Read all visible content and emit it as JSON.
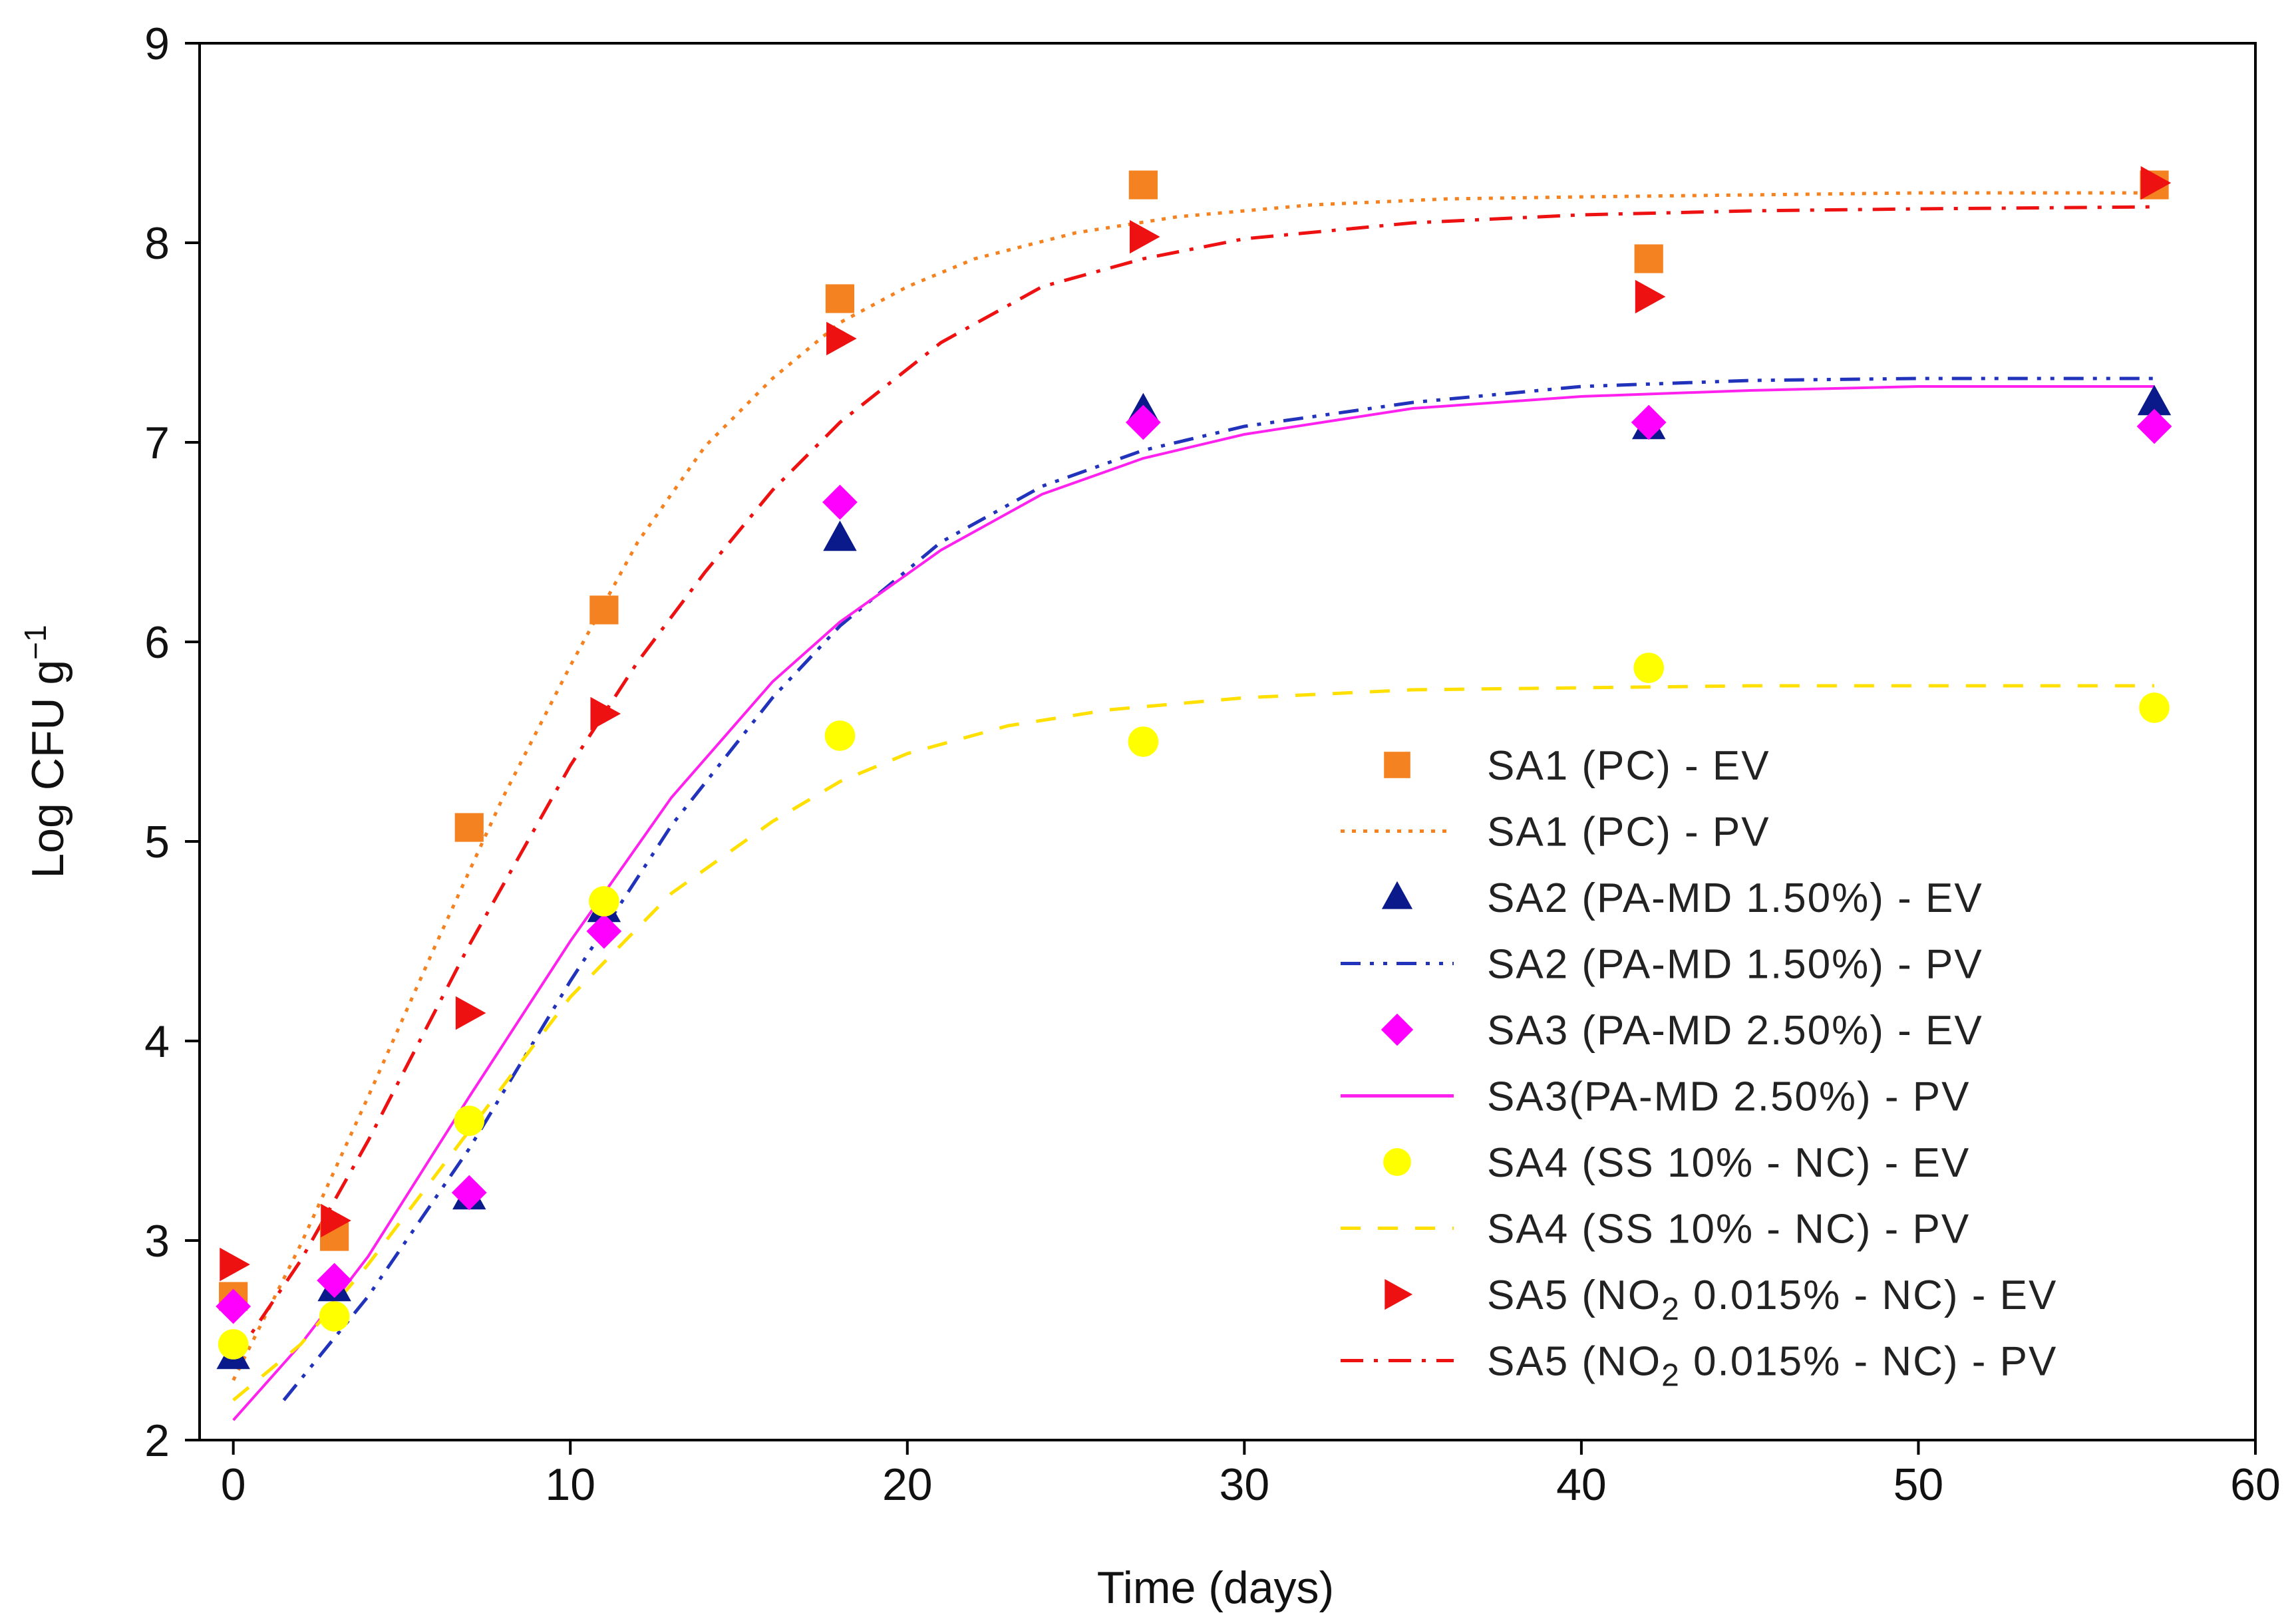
{
  "chart_data": {
    "type": "scatter",
    "title": "",
    "xlabel": "Time (days)",
    "ylabel": "Log CFU g",
    "ylabel_exponent": "−1",
    "xlim": [
      -1,
      60
    ],
    "ylim": [
      2,
      9
    ],
    "xticks": [
      0,
      10,
      20,
      30,
      40,
      50,
      60
    ],
    "yticks": [
      2,
      3,
      4,
      5,
      6,
      7,
      8,
      9
    ],
    "grid": false,
    "legend_position": "bottom-right",
    "series": [
      {
        "name": "SA1 (PC) - EV",
        "legend_main": "SA1 (PC) - EV",
        "kind": "points",
        "marker": "square",
        "color": "#f58220",
        "x": [
          0,
          3,
          7,
          11,
          18,
          27,
          42,
          57
        ],
        "y": [
          2.72,
          3.02,
          5.07,
          6.16,
          7.72,
          8.29,
          7.92,
          8.29
        ]
      },
      {
        "name": "SA1 (PC) - PV",
        "legend_main": "SA1 (PC) - PV",
        "kind": "line",
        "dash": "dot",
        "color": "#f58220",
        "x": [
          0,
          2,
          4,
          6,
          8,
          10,
          12,
          14,
          16,
          18,
          20,
          22,
          25,
          28,
          32,
          36,
          40,
          45,
          50,
          57
        ],
        "y": [
          2.3,
          2.98,
          3.72,
          4.48,
          5.22,
          5.88,
          6.5,
          6.98,
          7.32,
          7.6,
          7.78,
          7.92,
          8.05,
          8.13,
          8.19,
          8.22,
          8.23,
          8.24,
          8.25,
          8.25
        ]
      },
      {
        "name": "SA2 (PA-MD 1.50%) - EV",
        "legend_main": "SA2 (PA-MD 1.50%) - EV",
        "kind": "points",
        "marker": "triangle",
        "color": "#0a1a8a",
        "x": [
          0,
          3,
          7,
          11,
          18,
          27,
          42,
          57
        ],
        "y": [
          2.42,
          2.76,
          3.22,
          4.66,
          6.52,
          7.16,
          7.08,
          7.2
        ]
      },
      {
        "name": "SA2 (PA-MD 1.50%) - PV",
        "legend_main": "SA2 (PA-MD 1.50%) - PV",
        "kind": "line",
        "dash": "dashdotdot",
        "color": "#2233bb",
        "x": [
          1.5,
          4,
          7,
          10,
          13,
          16,
          18,
          21,
          24,
          27,
          30,
          35,
          40,
          45,
          50,
          57
        ],
        "y": [
          2.2,
          2.72,
          3.46,
          4.3,
          5.08,
          5.72,
          6.08,
          6.5,
          6.78,
          6.96,
          7.08,
          7.2,
          7.28,
          7.31,
          7.32,
          7.32
        ]
      },
      {
        "name": "SA3 (PA-MD 2.50%) - EV",
        "legend_main": "SA3 (PA-MD 2.50%) - EV",
        "kind": "points",
        "marker": "diamond",
        "color": "#ff00ff",
        "x": [
          0,
          3,
          7,
          11,
          18,
          27,
          42,
          57
        ],
        "y": [
          2.67,
          2.8,
          3.24,
          4.55,
          6.7,
          7.1,
          7.1,
          7.08
        ]
      },
      {
        "name": "SA3(PA-MD 2.50%) - PV",
        "legend_main": "SA3(PA-MD 2.50%) - PV",
        "kind": "line",
        "dash": "solid",
        "color": "#ff22ee",
        "x": [
          0,
          2,
          4,
          7,
          10,
          13,
          16,
          18,
          21,
          24,
          27,
          30,
          35,
          40,
          45,
          50,
          57
        ],
        "y": [
          2.1,
          2.48,
          2.92,
          3.72,
          4.5,
          5.22,
          5.8,
          6.1,
          6.46,
          6.74,
          6.92,
          7.04,
          7.17,
          7.23,
          7.26,
          7.28,
          7.28
        ]
      },
      {
        "name": "SA4 (SS 10% - NC) - EV",
        "legend_main": "SA4 (SS 10% - NC) - EV",
        "kind": "points",
        "marker": "circle",
        "color": "#ffff00",
        "x": [
          0,
          3,
          7,
          11,
          18,
          27,
          42,
          57
        ],
        "y": [
          2.48,
          2.62,
          3.6,
          4.7,
          5.53,
          5.5,
          5.87,
          5.67
        ]
      },
      {
        "name": "SA4 (SS 10% - NC) - PV",
        "legend_main": "SA4 (SS 10% - NC) - PV",
        "kind": "line",
        "dash": "dash",
        "color": "#ffe000",
        "x": [
          0,
          2,
          4,
          7,
          10,
          13,
          16,
          18,
          20,
          23,
          26,
          30,
          35,
          40,
          45,
          50,
          57
        ],
        "y": [
          2.2,
          2.48,
          2.88,
          3.55,
          4.22,
          4.74,
          5.1,
          5.3,
          5.44,
          5.58,
          5.66,
          5.72,
          5.76,
          5.77,
          5.78,
          5.78,
          5.78
        ]
      },
      {
        "name": "SA5 (NO2 0.015% - NC) - EV",
        "legend_main": "SA5 (NO",
        "legend_sub": "2",
        "legend_rest": " 0.015% - NC) - EV",
        "kind": "points",
        "marker": "right-triangle",
        "color": "#ee1111",
        "x": [
          0,
          3,
          7,
          11,
          18,
          27,
          42,
          57
        ],
        "y": [
          2.88,
          3.1,
          4.14,
          5.64,
          7.52,
          8.03,
          7.73,
          8.3
        ]
      },
      {
        "name": "SA5 (NO2 0.015% - NC) - PV",
        "legend_main": "SA5 (NO",
        "legend_sub": "2",
        "legend_rest": " 0.015% - NC) - PV",
        "kind": "line",
        "dash": "dashdot",
        "color": "#ee1111",
        "x": [
          0,
          2,
          4,
          7,
          10,
          12,
          14,
          16,
          18,
          21,
          24,
          27,
          30,
          35,
          40,
          45,
          50,
          57
        ],
        "y": [
          2.4,
          2.9,
          3.5,
          4.48,
          5.38,
          5.9,
          6.35,
          6.76,
          7.1,
          7.5,
          7.78,
          7.92,
          8.02,
          8.1,
          8.14,
          8.16,
          8.17,
          8.18
        ]
      }
    ]
  }
}
